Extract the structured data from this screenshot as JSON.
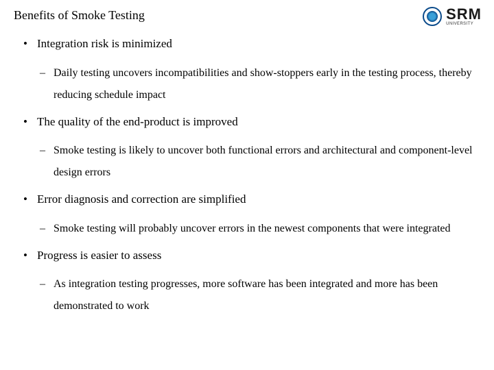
{
  "slide": {
    "title": "Benefits of Smoke Testing",
    "bullets": [
      {
        "text": "Integration risk is minimized",
        "sub": [
          "Daily testing uncovers incompatibilities and show-stoppers early in the testing process, thereby reducing schedule impact"
        ]
      },
      {
        "text": "The quality of the end-product is improved",
        "sub": [
          "Smoke testing is likely to uncover both functional errors and architectural and component-level design errors"
        ]
      },
      {
        "text": "Error diagnosis and correction are simplified",
        "sub": [
          "Smoke testing will probably uncover errors in the newest components that were integrated"
        ]
      },
      {
        "text": "Progress is easier to assess",
        "sub": [
          "As integration testing progresses, more software has been integrated and more has been demonstrated to work"
        ]
      }
    ]
  },
  "logo": {
    "main": "SRM",
    "sub": "UNIVERSITY"
  },
  "style": {
    "background_color": "#ffffff",
    "text_color": "#000000",
    "title_fontsize": 18,
    "bullet_fontsize": 17,
    "subbullet_fontsize": 16,
    "logo_blue": "#0a4a8a",
    "logo_sky": "#3aa0d8"
  }
}
